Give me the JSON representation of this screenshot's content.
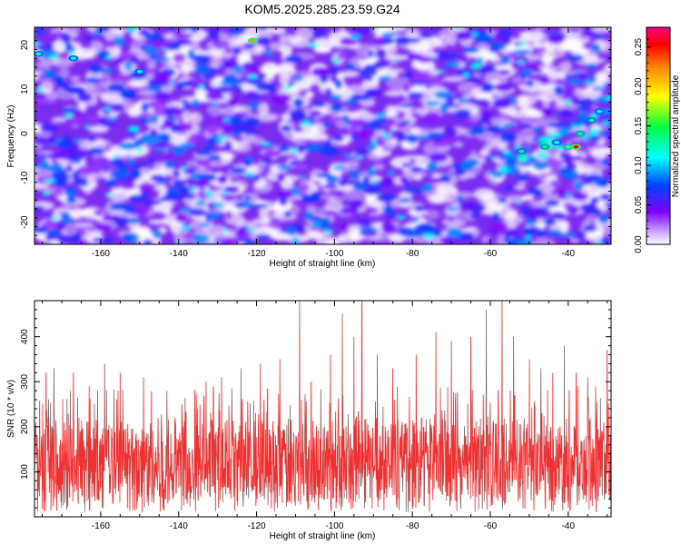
{
  "title": "KOM5.2025.285.23.59.G24",
  "chart_data": [
    {
      "type": "heatmap",
      "xlabel": "Height of straight line (km)",
      "ylabel": "Frequency (Hz)",
      "xlim": [
        -177,
        -29
      ],
      "ylim": [
        -25,
        24
      ],
      "x_ticks": [
        -160,
        -140,
        -120,
        -100,
        -80,
        -60,
        -40
      ],
      "x_tick_labels": [
        "-160",
        "-140",
        "-120",
        "-100",
        "-80",
        "-60",
        "-40"
      ],
      "y_ticks": [
        -20,
        -10,
        0,
        10,
        20
      ],
      "y_tick_labels": [
        "-20",
        "-10",
        "0",
        "10",
        "20"
      ],
      "colorbar": {
        "label": "Normalized spectral amplitude",
        "range": [
          0,
          0.275
        ],
        "ticks": [
          0,
          0.05,
          0.1,
          0.15,
          0.2,
          0.25
        ],
        "tick_labels": [
          "0.00",
          "0.05",
          "0.10",
          "0.15",
          "0.20",
          "0.25"
        ],
        "colors": [
          "#ffffff",
          "#8000ff",
          "#0040ff",
          "#00ffff",
          "#00ff00",
          "#ffff00",
          "#ff8000",
          "#ff0000",
          "#ff0080"
        ]
      },
      "hotspots": [
        {
          "x": -52,
          "y": -4,
          "value": 0.14
        },
        {
          "x": -46,
          "y": -3,
          "value": 0.15
        },
        {
          "x": -43,
          "y": -2,
          "value": 0.12
        },
        {
          "x": -40,
          "y": -3,
          "value": 0.16
        },
        {
          "x": -38,
          "y": -3,
          "value": 0.26
        },
        {
          "x": -37,
          "y": 0,
          "value": 0.15
        },
        {
          "x": -34,
          "y": 3,
          "value": 0.14
        },
        {
          "x": -32,
          "y": 5,
          "value": 0.12
        },
        {
          "x": -121,
          "y": 21,
          "value": 0.22
        },
        {
          "x": -167,
          "y": 17,
          "value": 0.12
        },
        {
          "x": -150,
          "y": 14,
          "value": 0.12
        },
        {
          "x": -176,
          "y": 18,
          "value": 0.12
        }
      ]
    },
    {
      "type": "line",
      "xlabel": "Height of straight line (km)",
      "ylabel": "SNR (10 * v/v)",
      "xlim": [
        -177,
        -29
      ],
      "ylim": [
        0,
        480
      ],
      "x_ticks": [
        -160,
        -140,
        -120,
        -100,
        -80,
        -60,
        -40
      ],
      "x_tick_labels": [
        "-160",
        "-140",
        "-120",
        "-100",
        "-80",
        "-60",
        "-40"
      ],
      "y_ticks": [
        100,
        200,
        300,
        400
      ],
      "y_tick_labels": [
        "100",
        "200",
        "300",
        "400"
      ],
      "line_color": "#f03030",
      "peaks": [
        {
          "x": -174,
          "y": 320
        },
        {
          "x": -172,
          "y": 330
        },
        {
          "x": -167,
          "y": 320
        },
        {
          "x": -163,
          "y": 290
        },
        {
          "x": -159,
          "y": 340
        },
        {
          "x": -155,
          "y": 320
        },
        {
          "x": -149,
          "y": 310
        },
        {
          "x": -143,
          "y": 280
        },
        {
          "x": -133,
          "y": 300
        },
        {
          "x": -129,
          "y": 310
        },
        {
          "x": -124,
          "y": 330
        },
        {
          "x": -119,
          "y": 340
        },
        {
          "x": -114,
          "y": 350
        },
        {
          "x": -109,
          "y": 480
        },
        {
          "x": -106,
          "y": 300
        },
        {
          "x": -101,
          "y": 360
        },
        {
          "x": -98,
          "y": 450
        },
        {
          "x": -95,
          "y": 400
        },
        {
          "x": -93,
          "y": 480
        },
        {
          "x": -89,
          "y": 360
        },
        {
          "x": -85,
          "y": 330
        },
        {
          "x": -79,
          "y": 360
        },
        {
          "x": -74,
          "y": 410
        },
        {
          "x": -70,
          "y": 390
        },
        {
          "x": -65,
          "y": 400
        },
        {
          "x": -61,
          "y": 460
        },
        {
          "x": -57,
          "y": 480
        },
        {
          "x": -54,
          "y": 400
        },
        {
          "x": -50,
          "y": 350
        },
        {
          "x": -47,
          "y": 330
        },
        {
          "x": -44,
          "y": 320
        },
        {
          "x": -41,
          "y": 380
        },
        {
          "x": -38,
          "y": 320
        },
        {
          "x": -35,
          "y": 310
        },
        {
          "x": -33,
          "y": 290
        },
        {
          "x": -30,
          "y": 370
        }
      ],
      "baseline_mean": 140
    }
  ]
}
